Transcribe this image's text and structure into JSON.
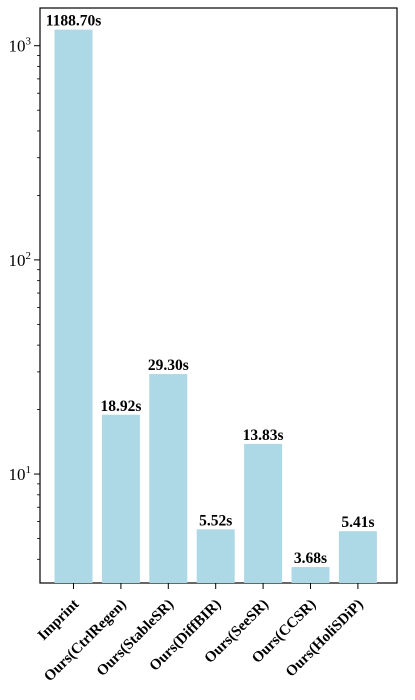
{
  "chart_data": {
    "type": "bar",
    "yscale": "log",
    "ylim": [
      3.1,
      1500
    ],
    "yticks": [
      {
        "base": "10",
        "exp": "1",
        "value": 10
      },
      {
        "base": "10",
        "exp": "2",
        "value": 100
      },
      {
        "base": "10",
        "exp": "3",
        "value": 1000
      }
    ],
    "categories": [
      "Imprint",
      "Ours(CtrlRegen)",
      "Ours(StableSR)",
      "Ours(DiffBIR)",
      "Ours(SeeSR)",
      "Ours(CCSR)",
      "Ours(HoliSDiP)"
    ],
    "values": [
      1188.7,
      18.92,
      29.3,
      5.52,
      13.83,
      3.68,
      5.41
    ],
    "data_labels": [
      "1188.70s",
      "18.92s",
      "29.30s",
      "5.52s",
      "13.83s",
      "3.68s",
      "5.41s"
    ],
    "bar_color": "#add8e6",
    "grid": false,
    "title": "",
    "xlabel": "",
    "ylabel": ""
  }
}
